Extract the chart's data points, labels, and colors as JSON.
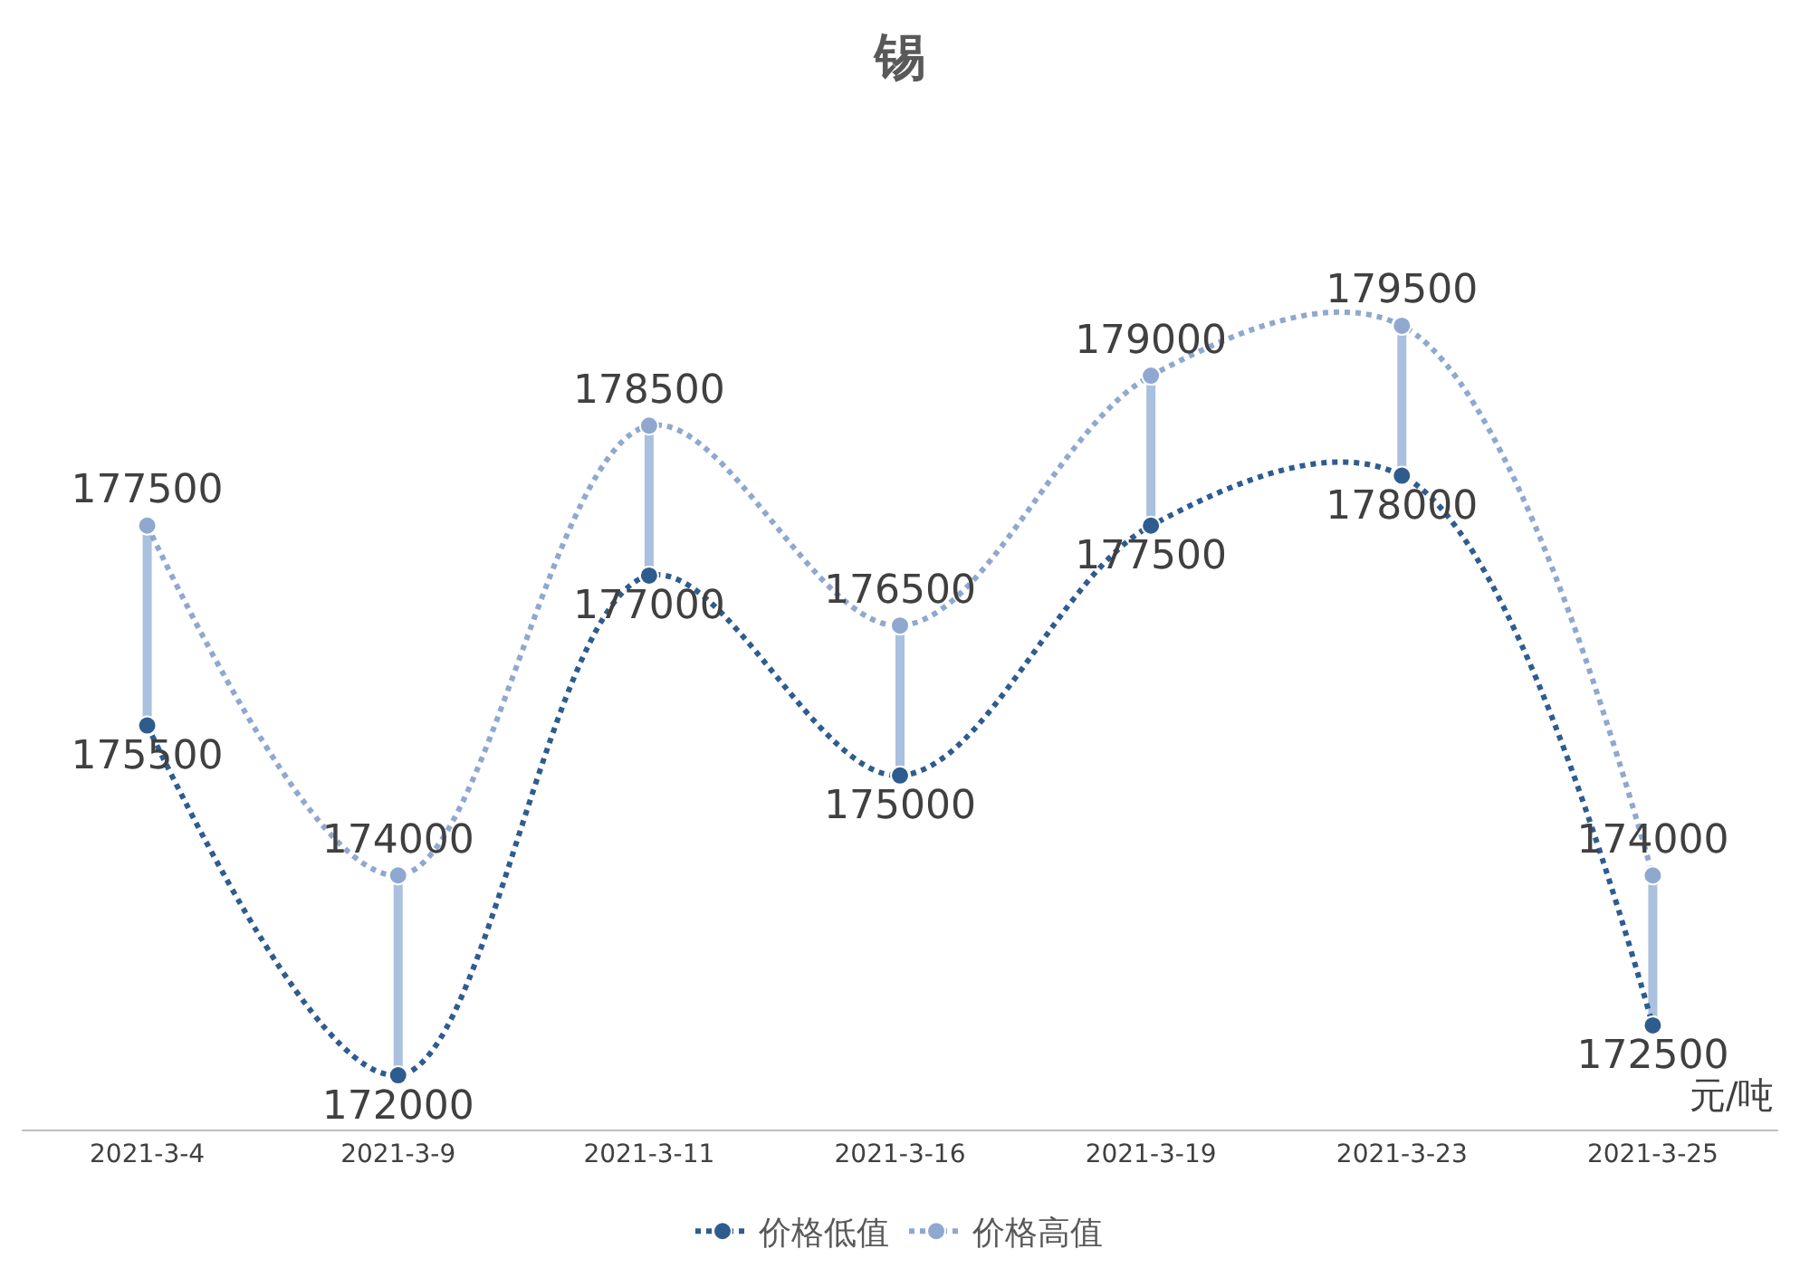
{
  "chart_data": {
    "type": "line",
    "title": "锡",
    "categories": [
      "2021-3-4",
      "2021-3-9",
      "2021-3-11",
      "2021-3-16",
      "2021-3-19",
      "2021-3-23",
      "2021-3-25"
    ],
    "series": [
      {
        "name": "价格低值",
        "color": "#2f5c8f",
        "values": [
          175500,
          172000,
          177000,
          175000,
          177500,
          178000,
          172500
        ]
      },
      {
        "name": "价格高值",
        "color": "#8fa8cf",
        "values": [
          177500,
          174000,
          178500,
          176500,
          179000,
          179500,
          174000
        ]
      }
    ],
    "data_labels": true,
    "marker": "circle",
    "line_style": "dotted",
    "legend": "bottom",
    "grid": false,
    "annotations": [
      "元/吨"
    ]
  }
}
